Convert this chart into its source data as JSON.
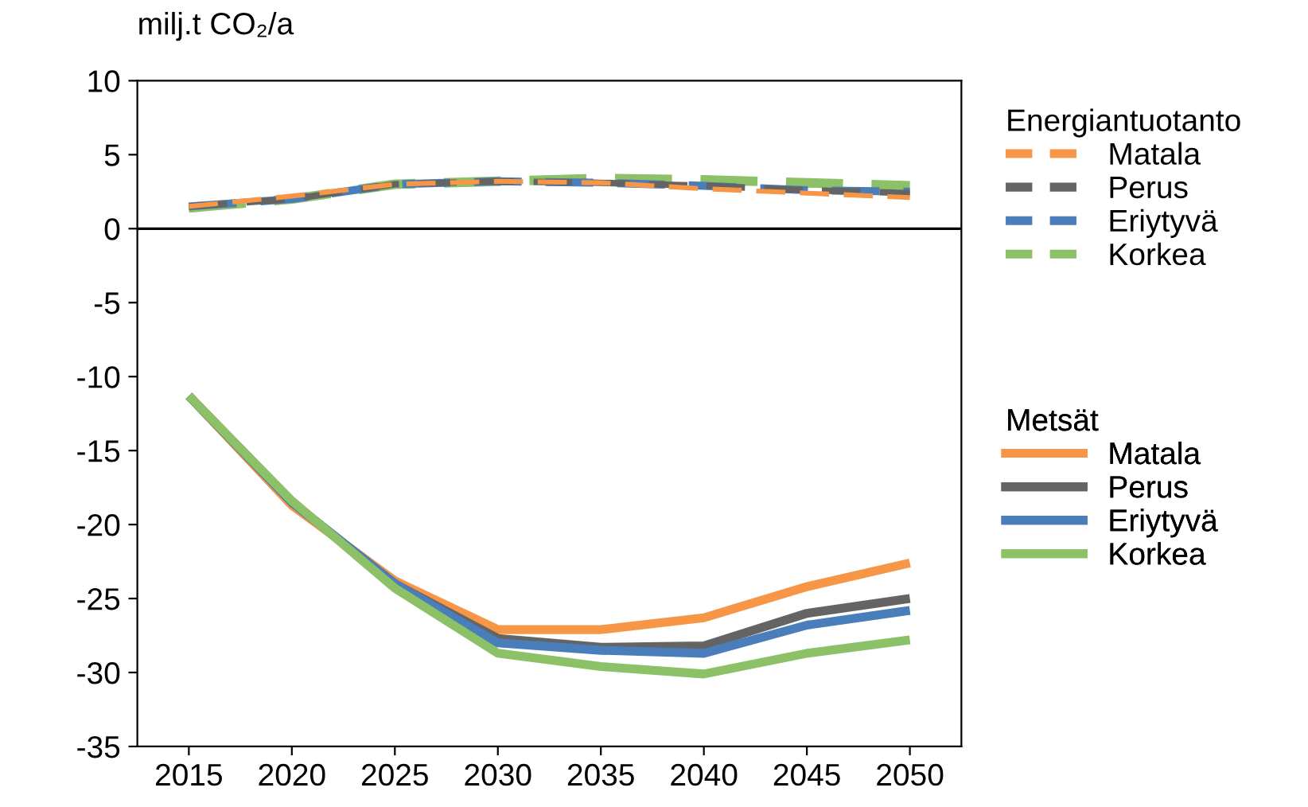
{
  "chart_data": {
    "type": "line",
    "ylabel": "milj.t CO₂/a",
    "legend_title": [
      "Energiantuotanto",
      "Metsät"
    ],
    "categories": [
      "2015",
      "2020",
      "2025",
      "2030",
      "2035",
      "2040",
      "2045",
      "2050"
    ],
    "ylim": [
      -35,
      10
    ],
    "yticks": [
      -35,
      -30,
      -25,
      -20,
      -15,
      -10,
      -5,
      0,
      5,
      10
    ],
    "grid": false,
    "legend": "right",
    "marker": "none",
    "ref_lines": [
      {
        "axis": "y",
        "value": 0,
        "color": "#000000"
      }
    ],
    "series": [
      {
        "name": "Matala",
        "color": "#f79646",
        "line_style": "dashed",
        "values": [
          1.5,
          2.2,
          3.0,
          3.2,
          3.1,
          2.7,
          2.4,
          2.1
        ]
      },
      {
        "name": "Perus",
        "color": "#646464",
        "line_style": "dashed",
        "values": [
          1.5,
          2.0,
          3.0,
          3.2,
          3.1,
          2.9,
          2.6,
          2.4
        ]
      },
      {
        "name": "Eriytyvä",
        "color": "#4a7ebb",
        "line_style": "dashed",
        "values": [
          1.5,
          2.0,
          3.0,
          3.2,
          3.1,
          2.9,
          2.6,
          2.5
        ]
      },
      {
        "name": "Korkea",
        "color": "#8cc168",
        "line_style": "dashed",
        "values": [
          1.4,
          2.0,
          3.0,
          3.2,
          3.4,
          3.3,
          3.1,
          2.9
        ]
      },
      {
        "name": "Matala",
        "color": "#f79646",
        "line_style": "solid",
        "values": [
          -11.3,
          -18.7,
          -23.8,
          -27.1,
          -27.1,
          -26.3,
          -24.2,
          -22.6
        ]
      },
      {
        "name": "Perus",
        "color": "#646464",
        "line_style": "solid",
        "values": [
          -11.3,
          -18.5,
          -24.0,
          -27.7,
          -28.3,
          -28.2,
          -26.0,
          -25.0
        ]
      },
      {
        "name": "Eriytyvä",
        "color": "#4a7ebb",
        "line_style": "solid",
        "values": [
          -11.3,
          -18.5,
          -24.0,
          -28.0,
          -28.5,
          -28.7,
          -26.8,
          -25.8
        ]
      },
      {
        "name": "Korkea",
        "color": "#8cc168",
        "line_style": "solid",
        "values": [
          -11.3,
          -18.4,
          -24.3,
          -28.7,
          -29.6,
          -30.1,
          -28.7,
          -27.8
        ]
      }
    ]
  }
}
